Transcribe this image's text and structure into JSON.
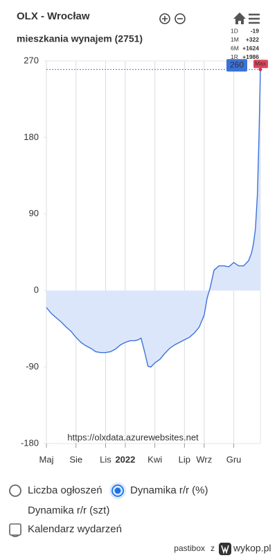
{
  "header": {
    "title": "OLX - Wrocław",
    "subtitle": "mieszkania wynajem (2751)"
  },
  "stats": [
    {
      "period": "1D",
      "change": "-19"
    },
    {
      "period": "1M",
      "change": "+322"
    },
    {
      "period": "6M",
      "change": "+1624"
    },
    {
      "period": "1R",
      "change": "+1986"
    }
  ],
  "chart_data": {
    "type": "area",
    "xlim": [
      0,
      21.7
    ],
    "xticks": [
      {
        "value": 0,
        "label": "Maj"
      },
      {
        "value": 3,
        "label": "Sie"
      },
      {
        "value": 6,
        "label": "Lis"
      },
      {
        "value": 8,
        "label": "2022",
        "bold": true
      },
      {
        "value": 11,
        "label": "Kwi"
      },
      {
        "value": 14,
        "label": "Lip"
      },
      {
        "value": 16,
        "label": "Wrz"
      },
      {
        "value": 19,
        "label": "Gru"
      }
    ],
    "ylim": [
      -180,
      270
    ],
    "yticks": [
      270,
      180,
      90,
      0,
      -90,
      -180
    ],
    "grid": "x",
    "series": [
      {
        "color": "#3a72d8",
        "fill": "#dce6fa",
        "x": [
          0,
          0.5,
          1,
          1.5,
          2,
          2.5,
          3,
          3.5,
          4,
          4.5,
          5,
          5.5,
          6,
          6.5,
          7,
          7.5,
          8,
          8.5,
          9,
          9.3,
          9.6,
          10,
          10.3,
          10.6,
          11,
          11.5,
          12,
          12.5,
          13,
          13.5,
          14,
          14.5,
          15,
          15.5,
          16,
          16.3,
          16.6,
          17,
          17.5,
          18,
          18.5,
          19,
          19.5,
          20,
          20.5,
          20.8,
          21,
          21.2,
          21.4,
          21.55,
          21.7
        ],
        "values": [
          -20,
          -27,
          -32,
          -37,
          -43,
          -48,
          -55,
          -61,
          -65,
          -68,
          -72,
          -73,
          -73,
          -72,
          -69,
          -64,
          -61,
          -59,
          -59,
          -58,
          -56,
          -74,
          -89,
          -90,
          -85,
          -81,
          -74,
          -68,
          -64,
          -61,
          -58,
          -55,
          -50,
          -43,
          -29,
          -9,
          3,
          24,
          29,
          29,
          28,
          33,
          29,
          29,
          35,
          44,
          55,
          73,
          113,
          178,
          260
        ]
      }
    ],
    "max_label": "Max",
    "watermark": "https://olxdata.azurewebsites.net"
  },
  "options": {
    "radios": [
      {
        "label": "Liczba ogłoszeń",
        "selected": false
      },
      {
        "label": "Dynamika r/r (%)",
        "selected": true
      },
      {
        "label": "Dynamika r/r (szt)",
        "selected": false
      }
    ],
    "checkbox": {
      "label": "Kalendarz wydarzeń",
      "checked": false
    }
  },
  "footer": {
    "user": "pastibox",
    "connector": "z",
    "site": "wykop.pl"
  }
}
